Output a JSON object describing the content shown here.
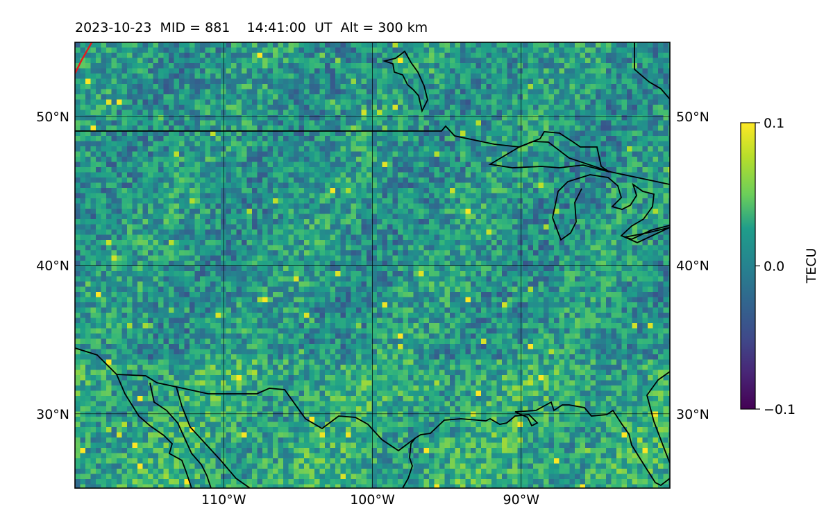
{
  "title": "2023-10-23  MID = 881    14:41:00  UT  Alt = 300 km",
  "map": {
    "lon_range": [
      -120,
      -80
    ],
    "lat_range": [
      25,
      55
    ],
    "lon_ticks": [
      {
        "value": -110,
        "label": "110°W"
      },
      {
        "value": -100,
        "label": "100°W"
      },
      {
        "value": -90,
        "label": "90°W"
      }
    ],
    "lat_ticks": [
      {
        "value": 50,
        "label": "50°N"
      },
      {
        "value": 40,
        "label": "40°N"
      },
      {
        "value": 30,
        "label": "30°N"
      }
    ],
    "gridlines": true,
    "field": "TEC perturbation"
  },
  "colorbar": {
    "label": "TECU",
    "min": -0.1,
    "max": 0.1,
    "colormap": "viridis",
    "ticks": [
      {
        "value": 0.1,
        "label": "0.1"
      },
      {
        "value": 0.0,
        "label": "0.0"
      },
      {
        "value": -0.1,
        "label": "−0.1"
      }
    ]
  },
  "colors": {
    "coastline": "#000000",
    "terminator": "#e8191b",
    "grid": "#000000"
  }
}
